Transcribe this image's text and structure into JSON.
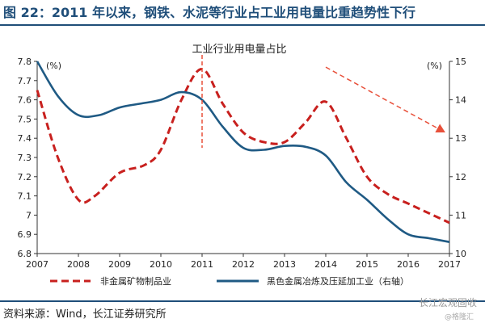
{
  "figure_title": "图 22：2011 年以来，钢铁、水泥等行业占工业用电量比重趋势性下行",
  "source": "资料来源：Wind，长江证券研究所",
  "watermark": "长江宏观固收",
  "watermark_sub": "@格隆汇",
  "colors": {
    "title": "#1f4e79",
    "series_left": "#c8201e",
    "series_right": "#1f5a84",
    "arrow": "#e8503a"
  },
  "chart_data": {
    "type": "line",
    "title": "工业行业用电量占比",
    "x": [
      "2007",
      "2008",
      "2009",
      "2010",
      "2011",
      "2012",
      "2013",
      "2014",
      "2015",
      "2016",
      "2017"
    ],
    "y_left": {
      "unit": "(%)",
      "ylim": [
        6.8,
        7.8
      ],
      "ticks": [
        "6.8",
        "6.9",
        "7",
        "7.1",
        "7.2",
        "7.3",
        "7.4",
        "7.5",
        "7.6",
        "7.7",
        "7.8"
      ]
    },
    "y_right": {
      "unit": "(%)",
      "ylim": [
        10,
        15
      ],
      "ticks": [
        "10",
        "11",
        "12",
        "13",
        "14",
        "15"
      ]
    },
    "series": [
      {
        "name": "非金属矿物制品业",
        "axis": "left",
        "style": "dashed",
        "color": "#c8201e",
        "x": [
          2007,
          2007.5,
          2008,
          2008.4,
          2009,
          2009.6,
          2010,
          2010.5,
          2011,
          2011.5,
          2012,
          2012.5,
          2013,
          2013.5,
          2014,
          2014.5,
          2015,
          2015.5,
          2016,
          2016.5,
          2017
        ],
        "values": [
          7.65,
          7.3,
          7.08,
          7.1,
          7.22,
          7.26,
          7.34,
          7.6,
          7.76,
          7.58,
          7.43,
          7.38,
          7.38,
          7.48,
          7.59,
          7.4,
          7.2,
          7.11,
          7.06,
          7.01,
          6.96
        ]
      },
      {
        "name": "黑色金属冶炼及压延加工业（右轴）",
        "axis": "right",
        "style": "solid",
        "color": "#1f5a84",
        "x": [
          2007,
          2007.5,
          2008,
          2008.5,
          2009,
          2009.5,
          2010,
          2010.5,
          2011,
          2011.5,
          2012,
          2012.5,
          2013,
          2013.5,
          2014,
          2014.5,
          2015,
          2015.5,
          2016,
          2016.5,
          2017
        ],
        "values": [
          15.0,
          14.1,
          13.6,
          13.6,
          13.8,
          13.9,
          14.0,
          14.2,
          14.0,
          13.3,
          12.75,
          12.7,
          12.8,
          12.78,
          12.55,
          11.85,
          11.4,
          10.9,
          10.5,
          10.4,
          10.3
        ]
      }
    ],
    "annotations": {
      "vline_x": 2011,
      "trend_arrow": {
        "from": [
          2014.0,
          7.77
        ],
        "to": [
          2016.9,
          7.43
        ]
      }
    },
    "legend": "bottom",
    "grid": false
  }
}
